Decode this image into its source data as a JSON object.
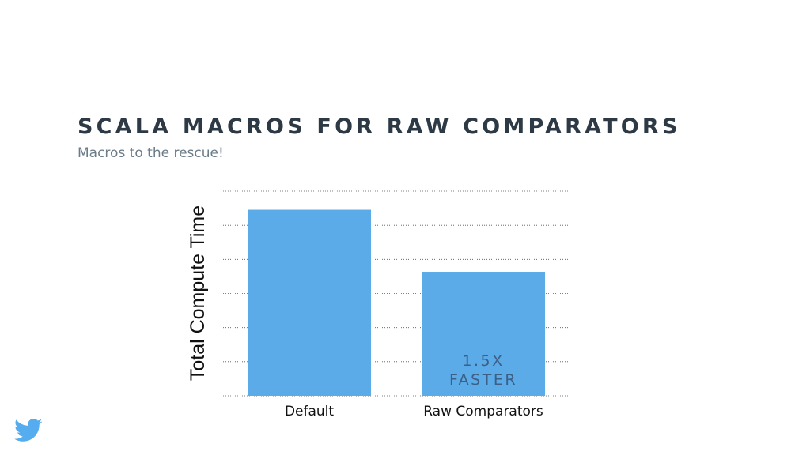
{
  "slide": {
    "title": "SCALA MACROS FOR RAW COMPARATORS",
    "subtitle": "Macros to the rescue!"
  },
  "colors": {
    "bar": "#5aabe8",
    "title": "#2d3a45",
    "subtitle": "#6b7c89",
    "annotation": "#3d5f86",
    "grid": "#555555",
    "logo": "#55acee"
  },
  "icons": {
    "logo": "twitter-bird-icon"
  },
  "chart_data": {
    "type": "bar",
    "title": "",
    "xlabel": "",
    "ylabel": "Total Compute Time",
    "categories": [
      "Default",
      "Raw Comparators"
    ],
    "values": [
      1.5,
      1.0
    ],
    "ylim": [
      0,
      1.65
    ],
    "grid": true,
    "gridlines": 6,
    "annotations": [
      {
        "category": "Raw Comparators",
        "lines": [
          "1.5X",
          "FASTER"
        ]
      }
    ]
  }
}
